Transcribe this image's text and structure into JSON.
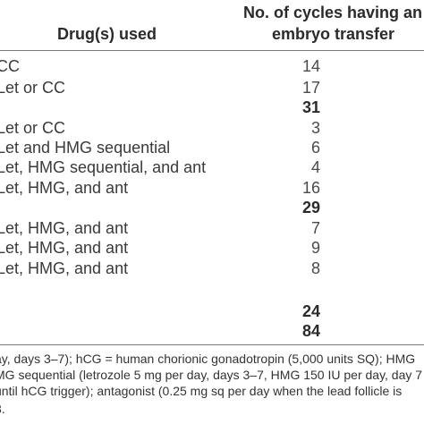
{
  "header": {
    "drugs_used": "Drug(s) used",
    "cycles_line1": "No. of cycles having an",
    "cycles_line2": "embryo transfer"
  },
  "rows": [
    {
      "drug": "CC",
      "count": "14"
    },
    {
      "drug": "Let or CC",
      "count": "17"
    },
    {
      "drug": "",
      "count": "31",
      "total": true
    },
    {
      "drug": "Let or CC",
      "count": "3"
    },
    {
      "drug": "Let and HMG sequential",
      "count": "6"
    },
    {
      "drug": "Let, HMG sequential, and ant",
      "count": "4"
    },
    {
      "drug": "Let, HMG, and ant",
      "count": "16"
    },
    {
      "drug": "",
      "count": "29",
      "total": true
    },
    {
      "drug": "Let, HMG, and ant",
      "count": "7"
    },
    {
      "drug": "Let, HMG, and ant",
      "count": "9"
    },
    {
      "drug": "Let, HMG, and ant",
      "count": "8"
    },
    {
      "drug": "",
      "count": "24",
      "total": true
    },
    {
      "drug": "",
      "count": "84",
      "total": true
    }
  ],
  "footnotes": [
    "ay, days 3–7); hCG = human chorionic gonadotropin (5,000 units SQ); HMG",
    "MG sequential (letrozole 5 mg per day, days 3–7, HMG 150 IU per day, day 7",
    "until hCG trigger); antagonist (0.25 mg sq per day when the lead follicle is",
    "3."
  ]
}
